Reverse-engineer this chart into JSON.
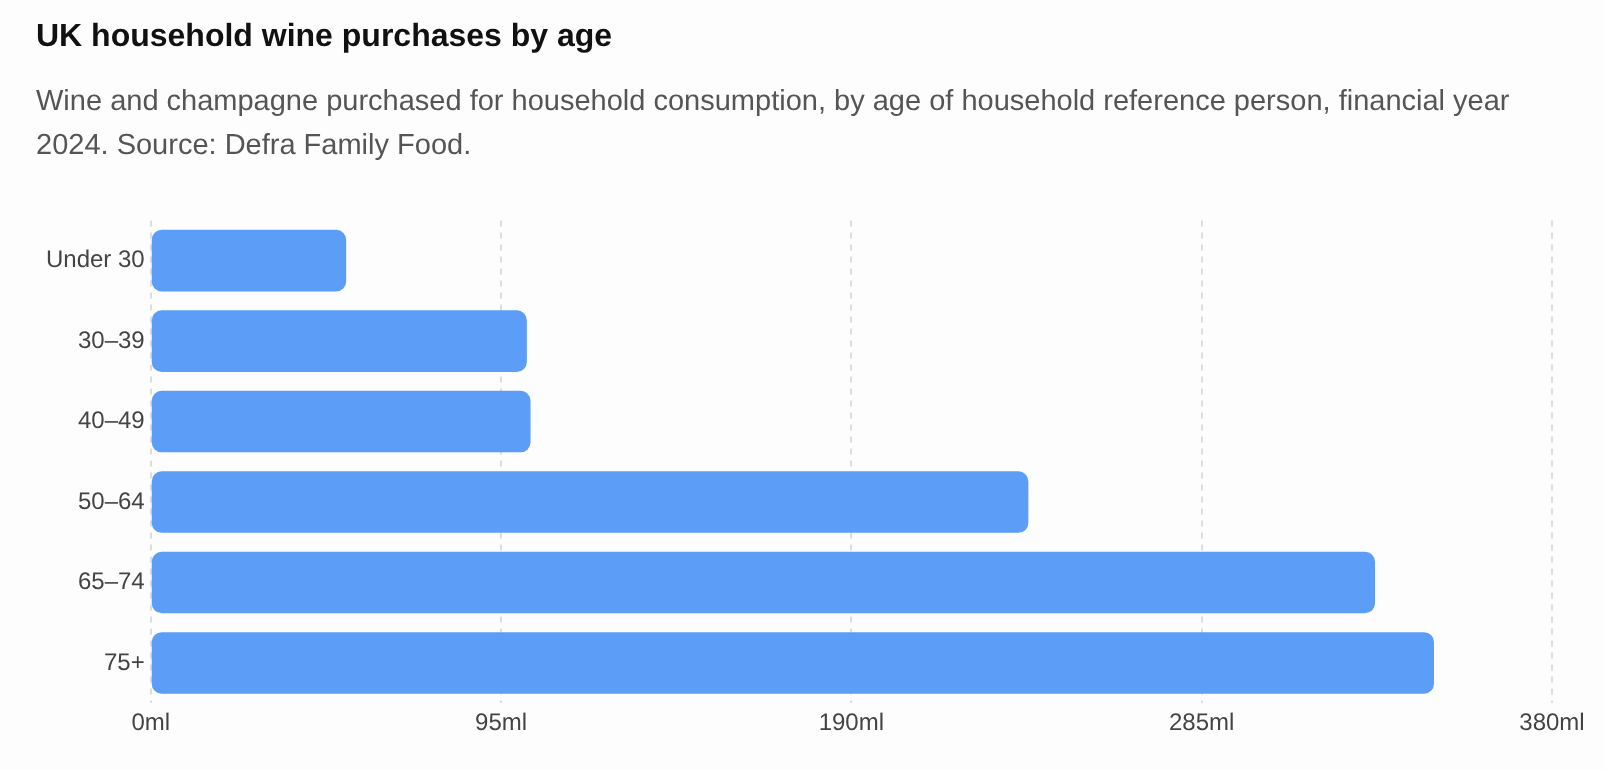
{
  "chart_data": {
    "type": "bar",
    "orientation": "horizontal",
    "title": "UK household wine purchases by age",
    "subtitle": "Wine and champagne purchased for household consumption, by age of household reference person, financial year 2024. Source: Defra Family Food.",
    "categories": [
      "Under 30",
      "30–39",
      "40–49",
      "50–64",
      "65–74",
      "75+"
    ],
    "values": [
      53,
      102,
      103,
      238,
      332,
      348
    ],
    "color": "#5b9df7",
    "xlim": [
      0,
      380
    ],
    "xticks": [
      {
        "value": 0,
        "label": "0ml"
      },
      {
        "value": 95,
        "label": "95ml"
      },
      {
        "value": 190,
        "label": "190ml"
      },
      {
        "value": 285,
        "label": "285ml"
      },
      {
        "value": 380,
        "label": "380ml"
      }
    ],
    "grid": "x"
  }
}
